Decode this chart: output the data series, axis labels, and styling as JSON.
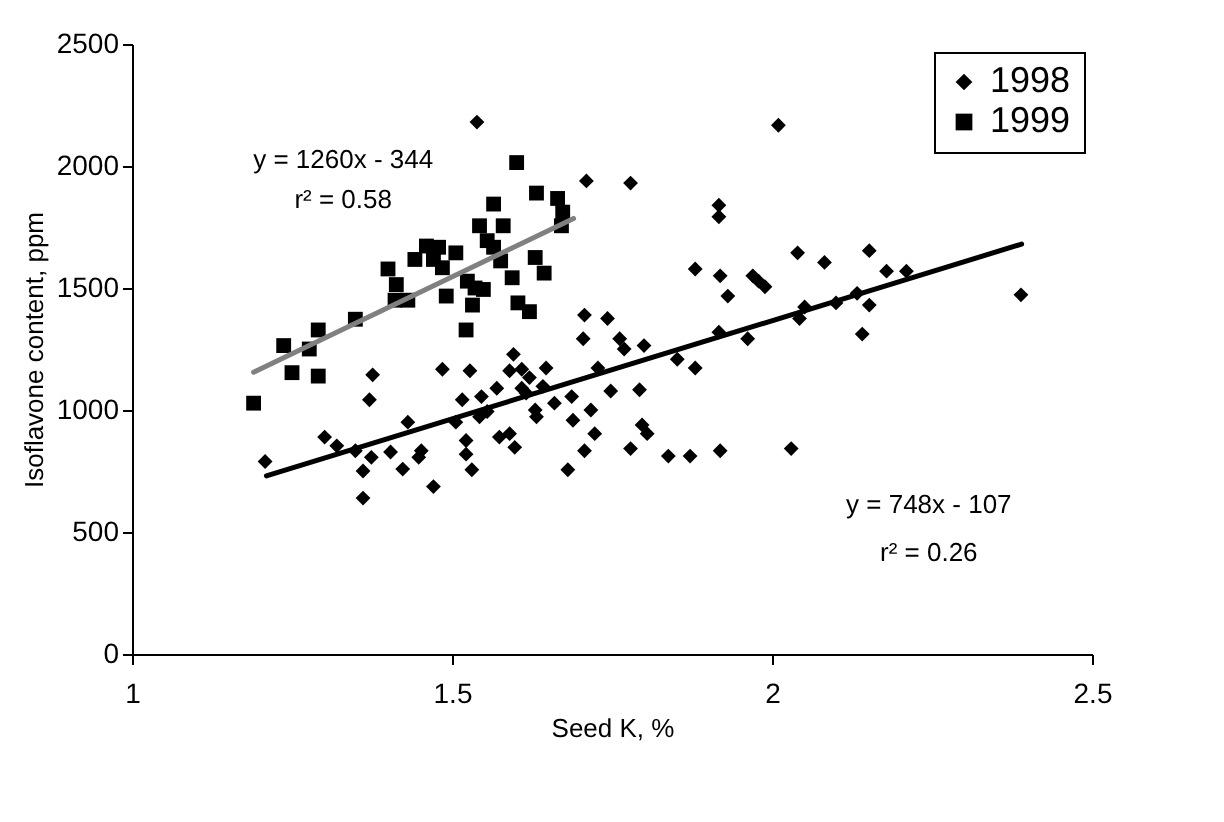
{
  "chart_data": {
    "type": "scatter",
    "xlabel": "Seed K, %",
    "ylabel": "Isoflavone content, ppm",
    "xlim": [
      1,
      2.5
    ],
    "xticks": [
      1,
      1.5,
      2,
      2.5
    ],
    "ylim": [
      0,
      2500
    ],
    "yticks": [
      0,
      500,
      1000,
      1500,
      2000,
      2500
    ],
    "grid": false,
    "legend": "top right",
    "series": [
      {
        "name": "1998",
        "marker": "diamond",
        "color": "#000000",
        "x": [
          1.539,
          1.376,
          1.485,
          1.528,
          1.596,
          1.59,
          1.609,
          1.621,
          1.647,
          1.371,
          1.208,
          1.301,
          1.32,
          1.349,
          1.361,
          1.361,
          1.374,
          1.404,
          1.423,
          1.431,
          1.448,
          1.452,
          1.471,
          1.506,
          1.516,
          1.546,
          1.522,
          1.522,
          1.531,
          1.543,
          1.555,
          1.57,
          1.574,
          1.59,
          1.598,
          1.616,
          1.609,
          1.63,
          1.632,
          1.642,
          1.66,
          1.681,
          1.687,
          1.689,
          2.01,
          1.71,
          1.779,
          1.917,
          1.917,
          1.707,
          1.743,
          1.705,
          1.762,
          1.769,
          1.8,
          1.728,
          1.852,
          1.88,
          1.88,
          1.919,
          1.931,
          1.962,
          1.917,
          1.97,
          1.979,
          1.989,
          2.04,
          2.082,
          2.043,
          2.051,
          2.1,
          2.133,
          2.141,
          2.152,
          2.152,
          2.179,
          2.21,
          2.389,
          1.748,
          1.793,
          1.717,
          1.723,
          1.707,
          1.779,
          1.805,
          1.797,
          1.838,
          1.872,
          1.919,
          2.03
        ],
        "values": [
          2180,
          1144,
          1167,
          1161,
          1228,
          1161,
          1167,
          1133,
          1172,
          1042,
          789,
          889,
          853,
          833,
          750,
          639,
          806,
          828,
          758,
          950,
          806,
          833,
          686,
          950,
          1042,
          1055,
          875,
          819,
          755,
          972,
          994,
          1089,
          889,
          903,
          847,
          1069,
          1089,
          1000,
          972,
          1097,
          1028,
          755,
          1055,
          958,
          2167,
          1939,
          1930,
          1839,
          1792,
          1389,
          1375,
          1292,
          1292,
          1250,
          1264,
          1172,
          1208,
          1172,
          1578,
          1550,
          1467,
          1292,
          1319,
          1550,
          1528,
          1505,
          1644,
          1605,
          1375,
          1422,
          1439,
          1478,
          1311,
          1430,
          1653,
          1569,
          1569,
          1472,
          1078,
          1083,
          1000,
          903,
          833,
          842,
          903,
          939,
          811,
          811,
          833,
          842
        ]
      },
      {
        "name": "1999",
        "marker": "square",
        "color": "#000000",
        "x": [
          1.19,
          1.237,
          1.25,
          1.277,
          1.291,
          1.291,
          1.349,
          1.4,
          1.413,
          1.411,
          1.431,
          1.46,
          1.442,
          1.471,
          1.479,
          1.491,
          1.506,
          1.485,
          1.522,
          1.524,
          1.536,
          1.532,
          1.549,
          1.543,
          1.555,
          1.565,
          1.58,
          1.576,
          1.594,
          1.601,
          1.603,
          1.621,
          1.63,
          1.632,
          1.644,
          1.665,
          1.673,
          1.671,
          1.565
        ],
        "values": [
          1028,
          1264,
          1153,
          1250,
          1139,
          1328,
          1372,
          1578,
          1514,
          1450,
          1450,
          1672,
          1617,
          1617,
          1667,
          1467,
          1644,
          1583,
          1328,
          1528,
          1500,
          1430,
          1494,
          1755,
          1694,
          1844,
          1755,
          1611,
          1542,
          2014,
          1439,
          1403,
          1625,
          1889,
          1561,
          1867,
          1811,
          1755,
          1667
        ]
      },
      {
        "type": "line",
        "color": "#000000",
        "x": [
          1.21,
          2.39
        ],
        "values": [
          730,
          1680
        ]
      },
      {
        "type": "line",
        "color": "#808080",
        "x": [
          1.19,
          1.69
        ],
        "values": [
          1155,
          1785
        ]
      }
    ],
    "annotations": [
      "y = 1260x - 344",
      "r² = 0.58",
      "y = 748x - 107",
      "r² = 0.26"
    ]
  }
}
